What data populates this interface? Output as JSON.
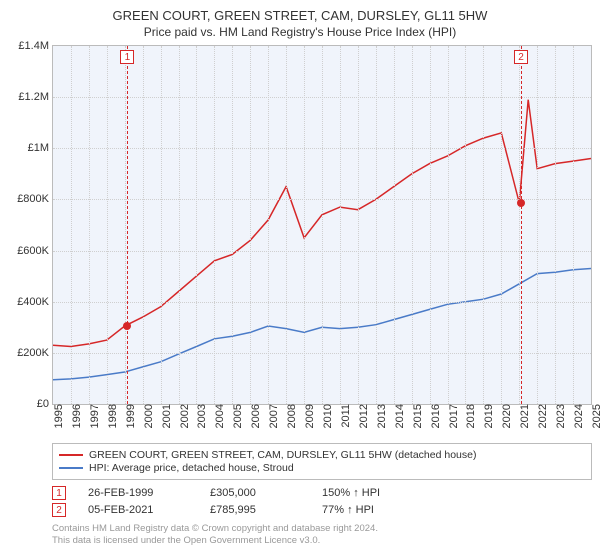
{
  "title": "GREEN COURT, GREEN STREET, CAM, DURSLEY, GL11 5HW",
  "subtitle": "Price paid vs. HM Land Registry's House Price Index (HPI)",
  "chart": {
    "type": "line",
    "background_color": "#f0f4fb",
    "grid_color": "#cfcfcf",
    "border_color": "#bbbbbb",
    "x_axis": {
      "min": 1995,
      "max": 2025,
      "ticks": [
        1995,
        1996,
        1997,
        1998,
        1999,
        2000,
        2001,
        2002,
        2003,
        2004,
        2005,
        2006,
        2007,
        2008,
        2009,
        2010,
        2011,
        2012,
        2013,
        2014,
        2015,
        2016,
        2017,
        2018,
        2019,
        2020,
        2021,
        2022,
        2023,
        2024,
        2025
      ],
      "label_fontsize": 11,
      "rotation": -90
    },
    "y_axis": {
      "min": 0,
      "max": 1400000,
      "ticks": [
        0,
        200000,
        400000,
        600000,
        800000,
        1000000,
        1200000,
        1400000
      ],
      "tick_labels": [
        "£0",
        "£200K",
        "£400K",
        "£600K",
        "£800K",
        "£1M",
        "£1.2M",
        "£1.4M"
      ],
      "label_fontsize": 11
    },
    "series": [
      {
        "name": "price_paid",
        "label": "GREEN COURT, GREEN STREET, CAM, DURSLEY, GL11 5HW (detached house)",
        "color": "#d62728",
        "line_width": 1.5,
        "data": [
          [
            1995,
            230000
          ],
          [
            1996,
            225000
          ],
          [
            1997,
            235000
          ],
          [
            1998,
            250000
          ],
          [
            1999,
            305000
          ],
          [
            2000,
            340000
          ],
          [
            2001,
            380000
          ],
          [
            2002,
            440000
          ],
          [
            2003,
            500000
          ],
          [
            2004,
            560000
          ],
          [
            2005,
            585000
          ],
          [
            2006,
            640000
          ],
          [
            2007,
            720000
          ],
          [
            2008,
            850000
          ],
          [
            2009,
            650000
          ],
          [
            2010,
            740000
          ],
          [
            2011,
            770000
          ],
          [
            2012,
            760000
          ],
          [
            2013,
            800000
          ],
          [
            2014,
            850000
          ],
          [
            2015,
            900000
          ],
          [
            2016,
            940000
          ],
          [
            2017,
            970000
          ],
          [
            2018,
            1010000
          ],
          [
            2019,
            1040000
          ],
          [
            2020,
            1060000
          ],
          [
            2021,
            785995
          ],
          [
            2021.5,
            1190000
          ],
          [
            2022,
            920000
          ],
          [
            2023,
            940000
          ],
          [
            2024,
            950000
          ],
          [
            2025,
            960000
          ]
        ]
      },
      {
        "name": "hpi",
        "label": "HPI: Average price, detached house, Stroud",
        "color": "#4a7bc8",
        "line_width": 1.5,
        "data": [
          [
            1995,
            95000
          ],
          [
            1996,
            98000
          ],
          [
            1997,
            105000
          ],
          [
            1998,
            115000
          ],
          [
            1999,
            125000
          ],
          [
            2000,
            145000
          ],
          [
            2001,
            165000
          ],
          [
            2002,
            195000
          ],
          [
            2003,
            225000
          ],
          [
            2004,
            255000
          ],
          [
            2005,
            265000
          ],
          [
            2006,
            280000
          ],
          [
            2007,
            305000
          ],
          [
            2008,
            295000
          ],
          [
            2009,
            280000
          ],
          [
            2010,
            300000
          ],
          [
            2011,
            295000
          ],
          [
            2012,
            300000
          ],
          [
            2013,
            310000
          ],
          [
            2014,
            330000
          ],
          [
            2015,
            350000
          ],
          [
            2016,
            370000
          ],
          [
            2017,
            390000
          ],
          [
            2018,
            400000
          ],
          [
            2019,
            410000
          ],
          [
            2020,
            430000
          ],
          [
            2021,
            470000
          ],
          [
            2022,
            510000
          ],
          [
            2023,
            515000
          ],
          [
            2024,
            525000
          ],
          [
            2025,
            530000
          ]
        ]
      }
    ],
    "markers": [
      {
        "id": "1",
        "x": 1999.15,
        "line_color": "#d62728",
        "box_color": "#d62728",
        "dot_color": "#d62728",
        "dot_y": 305000
      },
      {
        "id": "2",
        "x": 2021.1,
        "line_color": "#d62728",
        "box_color": "#d62728",
        "dot_color": "#d62728",
        "dot_y": 785995
      }
    ]
  },
  "legend": {
    "items": [
      {
        "color": "#d62728",
        "label": "GREEN COURT, GREEN STREET, CAM, DURSLEY, GL11 5HW (detached house)"
      },
      {
        "color": "#4a7bc8",
        "label": "HPI: Average price, detached house, Stroud"
      }
    ]
  },
  "events": [
    {
      "id": "1",
      "color": "#d62728",
      "date": "26-FEB-1999",
      "price": "£305,000",
      "hpi_delta": "150% ↑ HPI"
    },
    {
      "id": "2",
      "color": "#d62728",
      "date": "05-FEB-2021",
      "price": "£785,995",
      "hpi_delta": "77% ↑ HPI"
    }
  ],
  "footer": {
    "line1": "Contains HM Land Registry data © Crown copyright and database right 2024.",
    "line2": "This data is licensed under the Open Government Licence v3.0."
  }
}
